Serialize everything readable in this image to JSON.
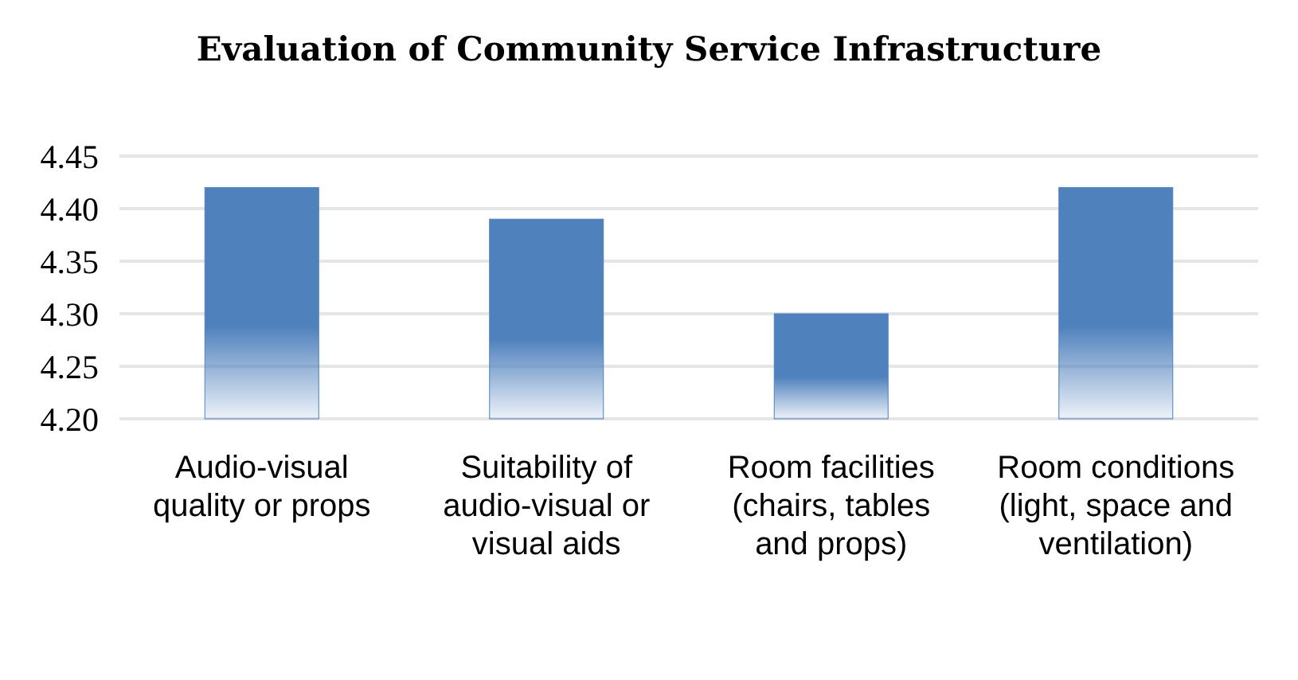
{
  "chart_data": {
    "type": "bar",
    "title": "Evaluation of Community Service Infrastructure",
    "categories": [
      "Audio-visual quality or props",
      "Suitability of audio-visual or visual aids",
      "Room facilities (chairs, tables and props)",
      "Room conditions (light, space and ventilation)"
    ],
    "values": [
      4.42,
      4.39,
      4.3,
      4.42
    ],
    "color": "#4f81bd",
    "ylim": [
      4.2,
      4.45
    ],
    "yticks": [
      {
        "value": 4.2,
        "label": "4.20"
      },
      {
        "value": 4.25,
        "label": "4.25"
      },
      {
        "value": 4.3,
        "label": "4.30"
      },
      {
        "value": 4.35,
        "label": "4.35"
      },
      {
        "value": 4.4,
        "label": "4.40"
      },
      {
        "value": 4.45,
        "label": "4.45"
      }
    ],
    "grid": true
  }
}
